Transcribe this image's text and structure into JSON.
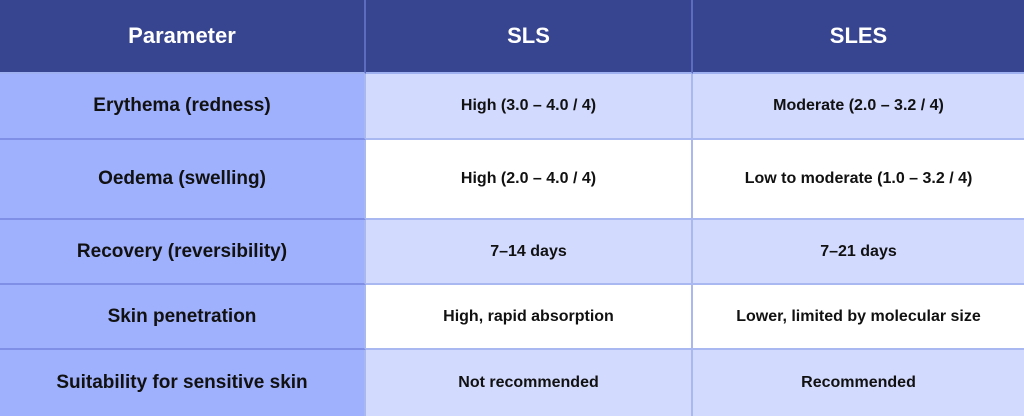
{
  "table": {
    "headers": [
      "Parameter",
      "SLS",
      "SLES"
    ],
    "rows": [
      [
        "Erythema (redness)",
        "High (3.0 – 4.0 / 4)",
        "Moderate (2.0 – 3.2 / 4)"
      ],
      [
        "Oedema (swelling)",
        "High (2.0 – 4.0 / 4)",
        "Low to moderate (1.0 – 3.2 / 4)"
      ],
      [
        "Recovery (reversibility)",
        "7–14 days",
        "7–21 days"
      ],
      [
        "Skin penetration",
        "High, rapid absorption",
        "Lower, limited by molecular size"
      ],
      [
        "Suitability for sensitive skin",
        "Not recommended",
        "Recommended"
      ]
    ]
  },
  "colors": {
    "header_bg": "#374590",
    "parameter_bg": "#9fb0fd",
    "shaded_row_bg": "#d2dafe",
    "plain_row_bg": "#ffffff"
  }
}
